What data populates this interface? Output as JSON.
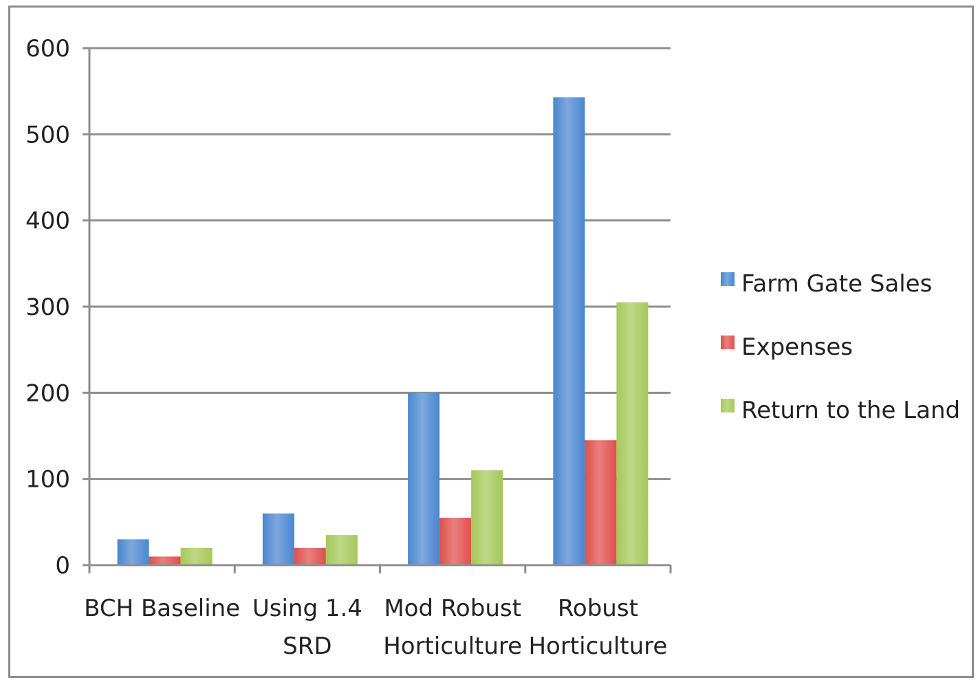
{
  "chart_data": {
    "type": "bar",
    "categories": [
      [
        "BCH Baseline"
      ],
      [
        "Using 1.4",
        "SRD"
      ],
      [
        "Mod Robust",
        "Horticulture"
      ],
      [
        "Robust",
        "Horticulture"
      ]
    ],
    "series": [
      {
        "name": "Farm Gate Sales",
        "color": "#4a86d0",
        "values": [
          30,
          60,
          200,
          543
        ]
      },
      {
        "name": "Expenses",
        "color": "#df4f4c",
        "values": [
          10,
          20,
          55,
          145
        ]
      },
      {
        "name": "Return to the Land",
        "color": "#a5c85a",
        "values": [
          20,
          35,
          110,
          305
        ]
      }
    ],
    "ylim": [
      0,
      600
    ],
    "yticks": [
      0,
      100,
      200,
      300,
      400,
      500,
      600
    ],
    "grid": true,
    "legend_position": "right"
  }
}
